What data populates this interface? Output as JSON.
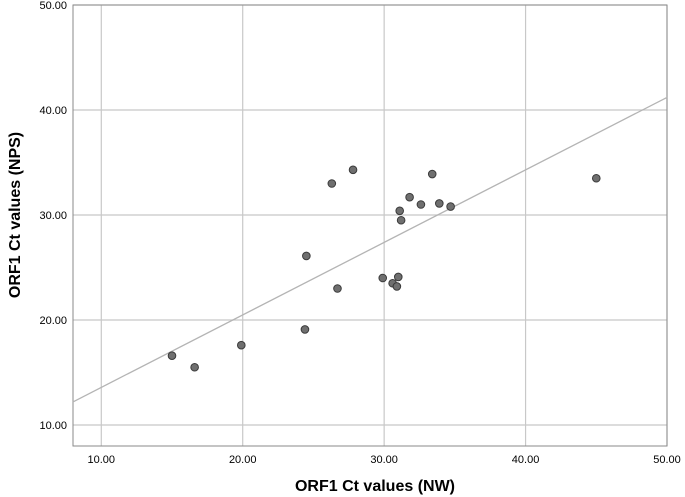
{
  "chart_data": {
    "type": "scatter",
    "title": "",
    "xlabel": "ORF1 Ct values (NW)",
    "ylabel": "ORF1 Ct values (NPS)",
    "xlim": [
      8.0,
      50.0
    ],
    "ylim": [
      8.0,
      50.0
    ],
    "x_ticks": [
      10,
      20,
      30,
      40,
      50
    ],
    "y_ticks": [
      10,
      20,
      30,
      40,
      50
    ],
    "x_tick_labels": [
      "10.00",
      "20.00",
      "30.00",
      "40.00",
      "50.00"
    ],
    "y_tick_labels": [
      "10.00",
      "20.00",
      "30.00",
      "40.00",
      "50.00"
    ],
    "grid": true,
    "points": [
      {
        "x": 15.0,
        "y": 16.6
      },
      {
        "x": 16.6,
        "y": 15.5
      },
      {
        "x": 19.9,
        "y": 17.6
      },
      {
        "x": 24.4,
        "y": 19.1
      },
      {
        "x": 24.5,
        "y": 26.1
      },
      {
        "x": 26.3,
        "y": 33.0
      },
      {
        "x": 26.7,
        "y": 23.0
      },
      {
        "x": 27.8,
        "y": 34.3
      },
      {
        "x": 29.9,
        "y": 24.0
      },
      {
        "x": 30.6,
        "y": 23.5
      },
      {
        "x": 30.9,
        "y": 23.2
      },
      {
        "x": 31.0,
        "y": 24.1
      },
      {
        "x": 31.1,
        "y": 30.4
      },
      {
        "x": 31.2,
        "y": 29.5
      },
      {
        "x": 31.8,
        "y": 31.7
      },
      {
        "x": 32.6,
        "y": 31.0
      },
      {
        "x": 33.4,
        "y": 33.9
      },
      {
        "x": 33.9,
        "y": 31.1
      },
      {
        "x": 34.7,
        "y": 30.8
      },
      {
        "x": 45.0,
        "y": 33.5
      }
    ],
    "fit_line": {
      "x": [
        8.0,
        50.0
      ],
      "y": [
        12.2,
        41.2
      ]
    },
    "colors": {
      "point_fill": "#6f6f6f",
      "point_stroke": "#3a3a3a",
      "grid": "#c8c8c8",
      "fit_line": "#b4b4b4",
      "frame": "#8a8a8a"
    }
  }
}
